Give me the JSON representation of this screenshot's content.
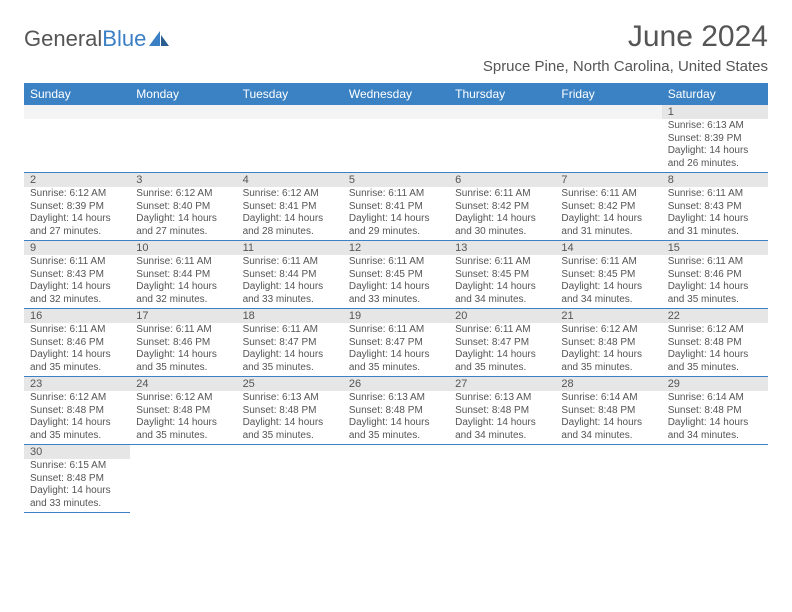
{
  "logo": {
    "text1": "General",
    "text2": "Blue"
  },
  "title": "June 2024",
  "location": "Spruce Pine, North Carolina, United States",
  "colors": {
    "header_bg": "#3b82c4",
    "header_fg": "#ffffff",
    "daynum_bg": "#e6e6e6",
    "rule": "#3b82c4",
    "text": "#555555"
  },
  "weekdays": [
    "Sunday",
    "Monday",
    "Tuesday",
    "Wednesday",
    "Thursday",
    "Friday",
    "Saturday"
  ],
  "weeks": [
    [
      null,
      null,
      null,
      null,
      null,
      null,
      {
        "n": "1",
        "sr": "Sunrise: 6:13 AM",
        "ss": "Sunset: 8:39 PM",
        "d1": "Daylight: 14 hours",
        "d2": "and 26 minutes."
      }
    ],
    [
      {
        "n": "2",
        "sr": "Sunrise: 6:12 AM",
        "ss": "Sunset: 8:39 PM",
        "d1": "Daylight: 14 hours",
        "d2": "and 27 minutes."
      },
      {
        "n": "3",
        "sr": "Sunrise: 6:12 AM",
        "ss": "Sunset: 8:40 PM",
        "d1": "Daylight: 14 hours",
        "d2": "and 27 minutes."
      },
      {
        "n": "4",
        "sr": "Sunrise: 6:12 AM",
        "ss": "Sunset: 8:41 PM",
        "d1": "Daylight: 14 hours",
        "d2": "and 28 minutes."
      },
      {
        "n": "5",
        "sr": "Sunrise: 6:11 AM",
        "ss": "Sunset: 8:41 PM",
        "d1": "Daylight: 14 hours",
        "d2": "and 29 minutes."
      },
      {
        "n": "6",
        "sr": "Sunrise: 6:11 AM",
        "ss": "Sunset: 8:42 PM",
        "d1": "Daylight: 14 hours",
        "d2": "and 30 minutes."
      },
      {
        "n": "7",
        "sr": "Sunrise: 6:11 AM",
        "ss": "Sunset: 8:42 PM",
        "d1": "Daylight: 14 hours",
        "d2": "and 31 minutes."
      },
      {
        "n": "8",
        "sr": "Sunrise: 6:11 AM",
        "ss": "Sunset: 8:43 PM",
        "d1": "Daylight: 14 hours",
        "d2": "and 31 minutes."
      }
    ],
    [
      {
        "n": "9",
        "sr": "Sunrise: 6:11 AM",
        "ss": "Sunset: 8:43 PM",
        "d1": "Daylight: 14 hours",
        "d2": "and 32 minutes."
      },
      {
        "n": "10",
        "sr": "Sunrise: 6:11 AM",
        "ss": "Sunset: 8:44 PM",
        "d1": "Daylight: 14 hours",
        "d2": "and 32 minutes."
      },
      {
        "n": "11",
        "sr": "Sunrise: 6:11 AM",
        "ss": "Sunset: 8:44 PM",
        "d1": "Daylight: 14 hours",
        "d2": "and 33 minutes."
      },
      {
        "n": "12",
        "sr": "Sunrise: 6:11 AM",
        "ss": "Sunset: 8:45 PM",
        "d1": "Daylight: 14 hours",
        "d2": "and 33 minutes."
      },
      {
        "n": "13",
        "sr": "Sunrise: 6:11 AM",
        "ss": "Sunset: 8:45 PM",
        "d1": "Daylight: 14 hours",
        "d2": "and 34 minutes."
      },
      {
        "n": "14",
        "sr": "Sunrise: 6:11 AM",
        "ss": "Sunset: 8:45 PM",
        "d1": "Daylight: 14 hours",
        "d2": "and 34 minutes."
      },
      {
        "n": "15",
        "sr": "Sunrise: 6:11 AM",
        "ss": "Sunset: 8:46 PM",
        "d1": "Daylight: 14 hours",
        "d2": "and 35 minutes."
      }
    ],
    [
      {
        "n": "16",
        "sr": "Sunrise: 6:11 AM",
        "ss": "Sunset: 8:46 PM",
        "d1": "Daylight: 14 hours",
        "d2": "and 35 minutes."
      },
      {
        "n": "17",
        "sr": "Sunrise: 6:11 AM",
        "ss": "Sunset: 8:46 PM",
        "d1": "Daylight: 14 hours",
        "d2": "and 35 minutes."
      },
      {
        "n": "18",
        "sr": "Sunrise: 6:11 AM",
        "ss": "Sunset: 8:47 PM",
        "d1": "Daylight: 14 hours",
        "d2": "and 35 minutes."
      },
      {
        "n": "19",
        "sr": "Sunrise: 6:11 AM",
        "ss": "Sunset: 8:47 PM",
        "d1": "Daylight: 14 hours",
        "d2": "and 35 minutes."
      },
      {
        "n": "20",
        "sr": "Sunrise: 6:11 AM",
        "ss": "Sunset: 8:47 PM",
        "d1": "Daylight: 14 hours",
        "d2": "and 35 minutes."
      },
      {
        "n": "21",
        "sr": "Sunrise: 6:12 AM",
        "ss": "Sunset: 8:48 PM",
        "d1": "Daylight: 14 hours",
        "d2": "and 35 minutes."
      },
      {
        "n": "22",
        "sr": "Sunrise: 6:12 AM",
        "ss": "Sunset: 8:48 PM",
        "d1": "Daylight: 14 hours",
        "d2": "and 35 minutes."
      }
    ],
    [
      {
        "n": "23",
        "sr": "Sunrise: 6:12 AM",
        "ss": "Sunset: 8:48 PM",
        "d1": "Daylight: 14 hours",
        "d2": "and 35 minutes."
      },
      {
        "n": "24",
        "sr": "Sunrise: 6:12 AM",
        "ss": "Sunset: 8:48 PM",
        "d1": "Daylight: 14 hours",
        "d2": "and 35 minutes."
      },
      {
        "n": "25",
        "sr": "Sunrise: 6:13 AM",
        "ss": "Sunset: 8:48 PM",
        "d1": "Daylight: 14 hours",
        "d2": "and 35 minutes."
      },
      {
        "n": "26",
        "sr": "Sunrise: 6:13 AM",
        "ss": "Sunset: 8:48 PM",
        "d1": "Daylight: 14 hours",
        "d2": "and 35 minutes."
      },
      {
        "n": "27",
        "sr": "Sunrise: 6:13 AM",
        "ss": "Sunset: 8:48 PM",
        "d1": "Daylight: 14 hours",
        "d2": "and 34 minutes."
      },
      {
        "n": "28",
        "sr": "Sunrise: 6:14 AM",
        "ss": "Sunset: 8:48 PM",
        "d1": "Daylight: 14 hours",
        "d2": "and 34 minutes."
      },
      {
        "n": "29",
        "sr": "Sunrise: 6:14 AM",
        "ss": "Sunset: 8:48 PM",
        "d1": "Daylight: 14 hours",
        "d2": "and 34 minutes."
      }
    ],
    [
      {
        "n": "30",
        "sr": "Sunrise: 6:15 AM",
        "ss": "Sunset: 8:48 PM",
        "d1": "Daylight: 14 hours",
        "d2": "and 33 minutes."
      },
      null,
      null,
      null,
      null,
      null,
      null
    ]
  ]
}
